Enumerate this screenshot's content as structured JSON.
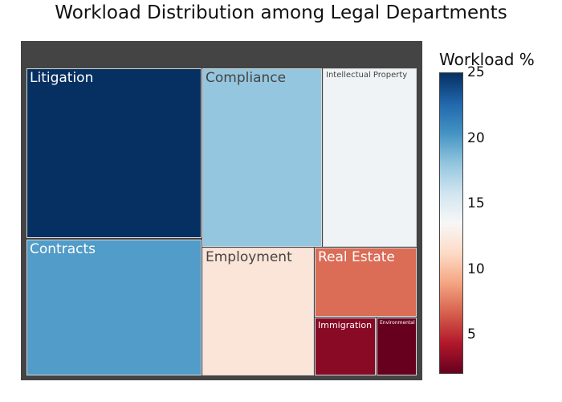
{
  "chart_data": {
    "type": "treemap",
    "title": "Workload Distribution among Legal Departments",
    "colorbar": {
      "title": "Workload %",
      "ticks": [
        "5",
        "10",
        "15",
        "20",
        "25"
      ],
      "range": [
        2,
        25
      ],
      "colorscale": [
        "#67001f",
        "#b2182b",
        "#d6604d",
        "#f4a582",
        "#fddbc7",
        "#f7f7f7",
        "#d1e5f0",
        "#92c5de",
        "#4393c3",
        "#2166ac",
        "#053061"
      ]
    },
    "items": [
      {
        "label": "Litigation",
        "value": 25
      },
      {
        "label": "Contracts",
        "value": 20
      },
      {
        "label": "Compliance",
        "value": 18
      },
      {
        "label": "Intellectual Property",
        "value": 14
      },
      {
        "label": "Employment",
        "value": 12
      },
      {
        "label": "Real Estate",
        "value": 7
      },
      {
        "label": "Immigration",
        "value": 3
      },
      {
        "label": "Environmental",
        "value": 2
      }
    ]
  }
}
